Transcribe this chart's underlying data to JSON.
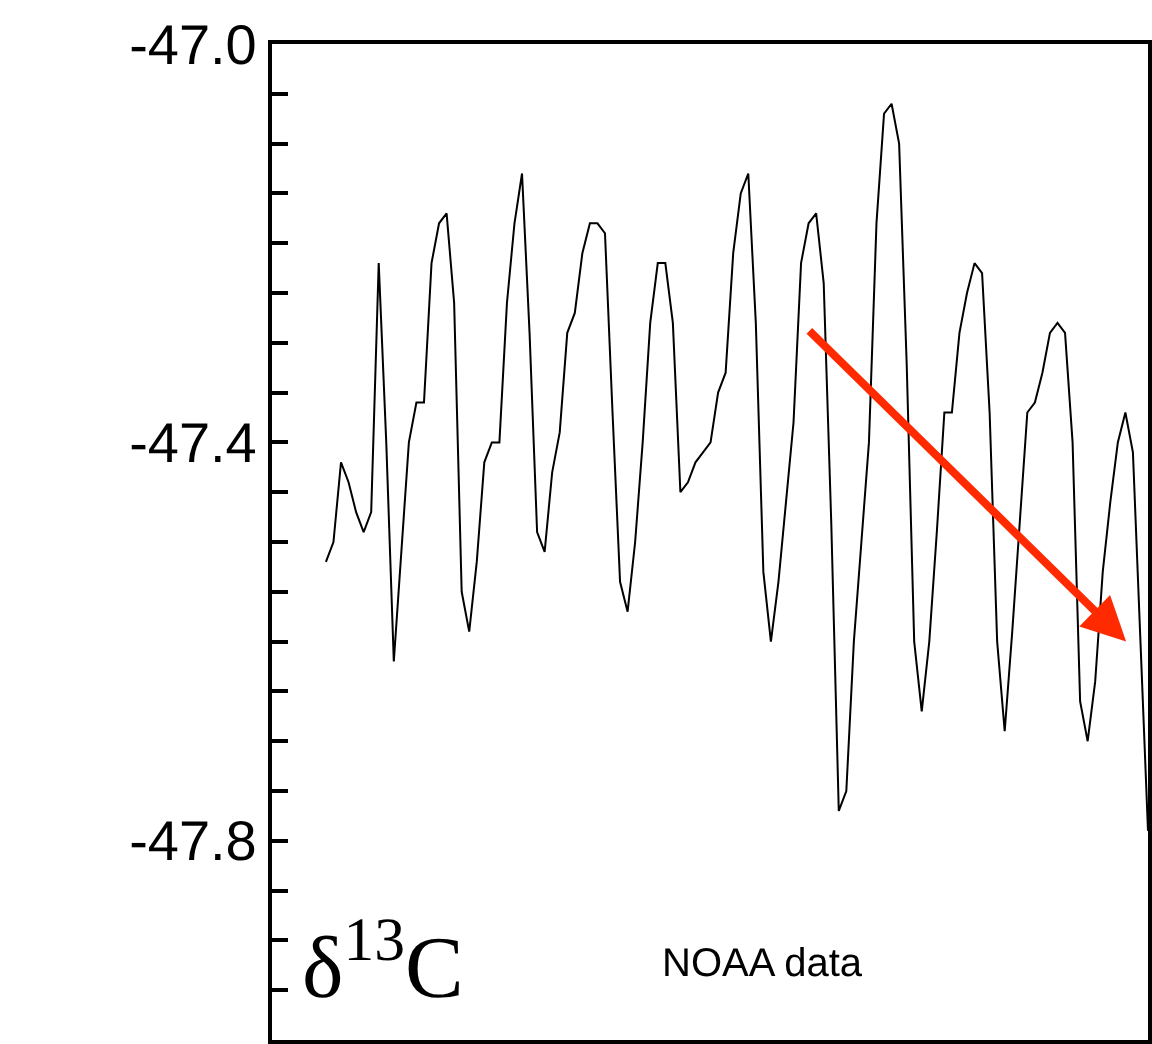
{
  "chart_data": {
    "type": "line",
    "color": "#000000",
    "marker": "none",
    "line_style": "solid",
    "categories": [
      null,
      null,
      null,
      null,
      null,
      null,
      null,
      null,
      null,
      null,
      null,
      null,
      null,
      null,
      null,
      null,
      null,
      null,
      null,
      null,
      null,
      null,
      null,
      null,
      null,
      null,
      null,
      null,
      null,
      null,
      null,
      null,
      null,
      null,
      null,
      null,
      null,
      null,
      null,
      null,
      null,
      null,
      null,
      null,
      null,
      null,
      null,
      null,
      null,
      null,
      null,
      null,
      null,
      null,
      null,
      null,
      null,
      null,
      null,
      null,
      null,
      null,
      null,
      null,
      null,
      null,
      null,
      null,
      null,
      null,
      null,
      null,
      null,
      null,
      null,
      null,
      null,
      null,
      null,
      null,
      null,
      null,
      null,
      null,
      null,
      null,
      null,
      null,
      null,
      null,
      null,
      null,
      null,
      null,
      null,
      null,
      null,
      null,
      null,
      null,
      null,
      null,
      null,
      null,
      null,
      null,
      null,
      null,
      null,
      null
    ],
    "values": [
      -47.52,
      -47.5,
      -47.42,
      -47.44,
      -47.47,
      -47.49,
      -47.47,
      -47.22,
      -47.4,
      -47.62,
      -47.51,
      -47.4,
      -47.36,
      -47.36,
      -47.22,
      -47.18,
      -47.17,
      -47.26,
      -47.55,
      -47.59,
      -47.52,
      -47.42,
      -47.4,
      -47.4,
      -47.26,
      -47.18,
      -47.13,
      -47.29,
      -47.49,
      -47.51,
      -47.43,
      -47.39,
      -47.29,
      -47.27,
      -47.21,
      -47.18,
      -47.18,
      -47.19,
      -47.37,
      -47.54,
      -47.57,
      -47.5,
      -47.4,
      -47.28,
      -47.22,
      -47.22,
      -47.28,
      -47.45,
      -47.44,
      -47.42,
      -47.41,
      -47.4,
      -47.35,
      -47.33,
      -47.21,
      -47.15,
      -47.13,
      -47.28,
      -47.53,
      -47.6,
      -47.54,
      -47.46,
      -47.38,
      -47.22,
      -47.18,
      -47.17,
      -47.24,
      -47.48,
      -47.77,
      -47.75,
      -47.6,
      -47.5,
      -47.4,
      -47.18,
      -47.07,
      -47.06,
      -47.1,
      -47.32,
      -47.6,
      -47.67,
      -47.6,
      -47.49,
      -47.37,
      -47.37,
      -47.29,
      -47.25,
      -47.22,
      -47.23,
      -47.37,
      -47.6,
      -47.69,
      -47.59,
      -47.48,
      -47.37,
      -47.36,
      -47.33,
      -47.29,
      -47.28,
      -47.29,
      -47.4,
      -47.66,
      -47.7,
      -47.64,
      -47.53,
      -47.46,
      -47.4,
      -47.37,
      -47.41,
      -47.6,
      -47.79
    ],
    "ylim": [
      -48.0,
      -47.0
    ],
    "yticks": [
      {
        "value": -47.0,
        "label": "-47.0"
      },
      {
        "value": -47.4,
        "label": "-47.4"
      },
      {
        "value": -47.8,
        "label": "-47.8"
      }
    ],
    "tick_labels": "y",
    "annotations": [
      "δ$^{13}$C",
      "NOAA data"
    ]
  }
}
